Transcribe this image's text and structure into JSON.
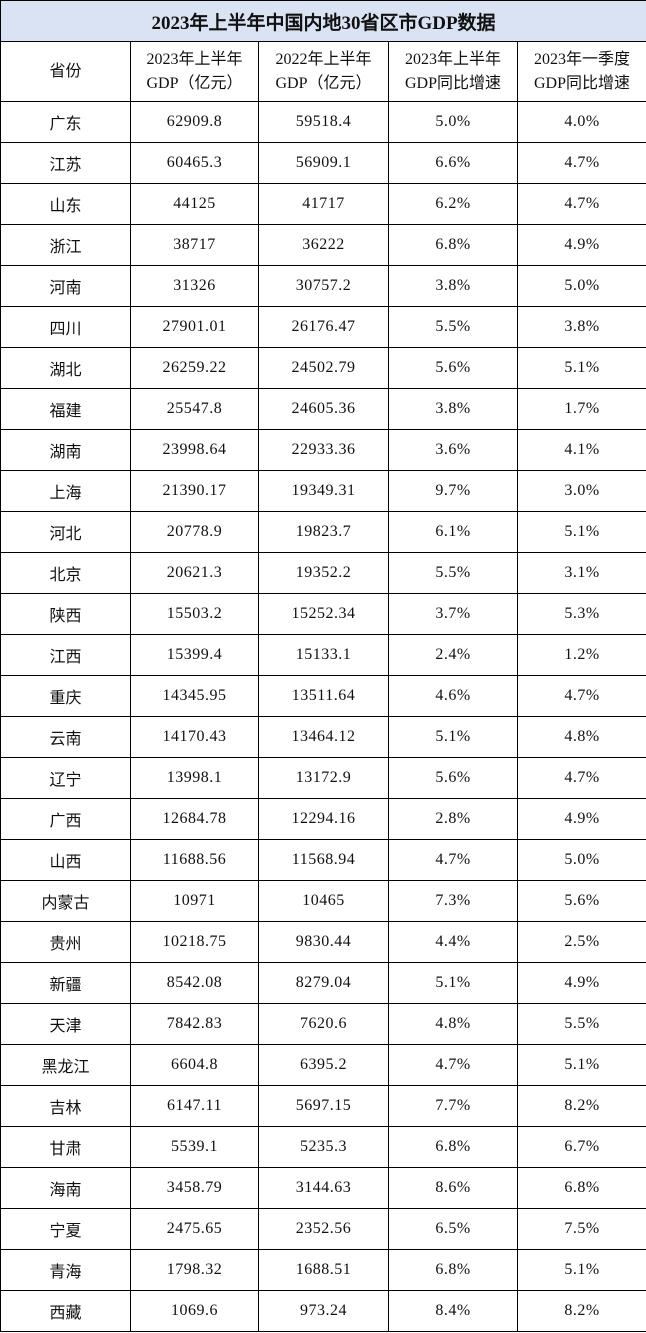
{
  "title": "2023年上半年中国内地30省区市GDP数据",
  "colors": {
    "title_background": "#dae3f3",
    "border": "#000000"
  },
  "headers": [
    {
      "line1": "省份",
      "line2": ""
    },
    {
      "line1": "2023年上半年",
      "line2": "GDP（亿元）"
    },
    {
      "line1": "2022年上半年",
      "line2": "GDP（亿元）"
    },
    {
      "line1": "2023年上半年",
      "line2": "GDP同比增速"
    },
    {
      "line1": "2023年一季度",
      "line2": "GDP同比增速"
    }
  ],
  "rows": [
    [
      "广东",
      "62909.8",
      "59518.4",
      "5.0%",
      "4.0%"
    ],
    [
      "江苏",
      "60465.3",
      "56909.1",
      "6.6%",
      "4.7%"
    ],
    [
      "山东",
      "44125",
      "41717",
      "6.2%",
      "4.7%"
    ],
    [
      "浙江",
      "38717",
      "36222",
      "6.8%",
      "4.9%"
    ],
    [
      "河南",
      "31326",
      "30757.2",
      "3.8%",
      "5.0%"
    ],
    [
      "四川",
      "27901.01",
      "26176.47",
      "5.5%",
      "3.8%"
    ],
    [
      "湖北",
      "26259.22",
      "24502.79",
      "5.6%",
      "5.1%"
    ],
    [
      "福建",
      "25547.8",
      "24605.36",
      "3.8%",
      "1.7%"
    ],
    [
      "湖南",
      "23998.64",
      "22933.36",
      "3.6%",
      "4.1%"
    ],
    [
      "上海",
      "21390.17",
      "19349.31",
      "9.7%",
      "3.0%"
    ],
    [
      "河北",
      "20778.9",
      "19823.7",
      "6.1%",
      "5.1%"
    ],
    [
      "北京",
      "20621.3",
      "19352.2",
      "5.5%",
      "3.1%"
    ],
    [
      "陕西",
      "15503.2",
      "15252.34",
      "3.7%",
      "5.3%"
    ],
    [
      "江西",
      "15399.4",
      "15133.1",
      "2.4%",
      "1.2%"
    ],
    [
      "重庆",
      "14345.95",
      "13511.64",
      "4.6%",
      "4.7%"
    ],
    [
      "云南",
      "14170.43",
      "13464.12",
      "5.1%",
      "4.8%"
    ],
    [
      "辽宁",
      "13998.1",
      "13172.9",
      "5.6%",
      "4.7%"
    ],
    [
      "广西",
      "12684.78",
      "12294.16",
      "2.8%",
      "4.9%"
    ],
    [
      "山西",
      "11688.56",
      "11568.94",
      "4.7%",
      "5.0%"
    ],
    [
      "内蒙古",
      "10971",
      "10465",
      "7.3%",
      "5.6%"
    ],
    [
      "贵州",
      "10218.75",
      "9830.44",
      "4.4%",
      "2.5%"
    ],
    [
      "新疆",
      "8542.08",
      "8279.04",
      "5.1%",
      "4.9%"
    ],
    [
      "天津",
      "7842.83",
      "7620.6",
      "4.8%",
      "5.5%"
    ],
    [
      "黑龙江",
      "6604.8",
      "6395.2",
      "4.7%",
      "5.1%"
    ],
    [
      "吉林",
      "6147.11",
      "5697.15",
      "7.7%",
      "8.2%"
    ],
    [
      "甘肃",
      "5539.1",
      "5235.3",
      "6.8%",
      "6.7%"
    ],
    [
      "海南",
      "3458.79",
      "3144.63",
      "8.6%",
      "6.8%"
    ],
    [
      "宁夏",
      "2475.65",
      "2352.56",
      "6.5%",
      "7.5%"
    ],
    [
      "青海",
      "1798.32",
      "1688.51",
      "6.8%",
      "5.1%"
    ],
    [
      "西藏",
      "1069.6",
      "973.24",
      "8.4%",
      "8.2%"
    ]
  ]
}
